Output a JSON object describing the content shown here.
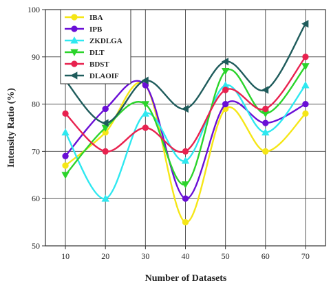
{
  "chart_data": {
    "type": "line",
    "x": [
      10,
      20,
      30,
      40,
      50,
      60,
      70
    ],
    "xlabel": "Number  of Datasets",
    "ylabel": "Intensity Ratio (%)",
    "xticks": [
      10,
      20,
      30,
      40,
      50,
      60,
      70
    ],
    "yticks": [
      50,
      60,
      70,
      80,
      90,
      100
    ],
    "xlim": [
      5,
      75
    ],
    "ylim": [
      50,
      100
    ],
    "grid": true,
    "smooth": true,
    "legend_position": "top-left",
    "series": [
      {
        "name": "IBA",
        "color": "#f5e616",
        "marker": "circle",
        "values": [
          67,
          74,
          84,
          55,
          79,
          70,
          78
        ]
      },
      {
        "name": "IPB",
        "color": "#6a0fd6",
        "marker": "circle",
        "values": [
          69,
          79,
          84,
          60,
          80,
          76,
          80
        ]
      },
      {
        "name": "ZKDLGA",
        "color": "#2ee8f0",
        "marker": "triangle-up",
        "values": [
          74,
          60,
          78,
          68,
          84,
          74,
          84
        ]
      },
      {
        "name": "DLT",
        "color": "#2bd42b",
        "marker": "triangle-down",
        "values": [
          65,
          75,
          80,
          63,
          87,
          78,
          88
        ]
      },
      {
        "name": "BDST",
        "color": "#e8224f",
        "marker": "circle",
        "values": [
          78,
          70,
          75,
          70,
          83,
          79,
          90
        ]
      },
      {
        "name": "DLAOIF",
        "color": "#1f5c5c",
        "marker": "triangle-left",
        "values": [
          85,
          76,
          85,
          79,
          89,
          83,
          97
        ]
      }
    ]
  }
}
